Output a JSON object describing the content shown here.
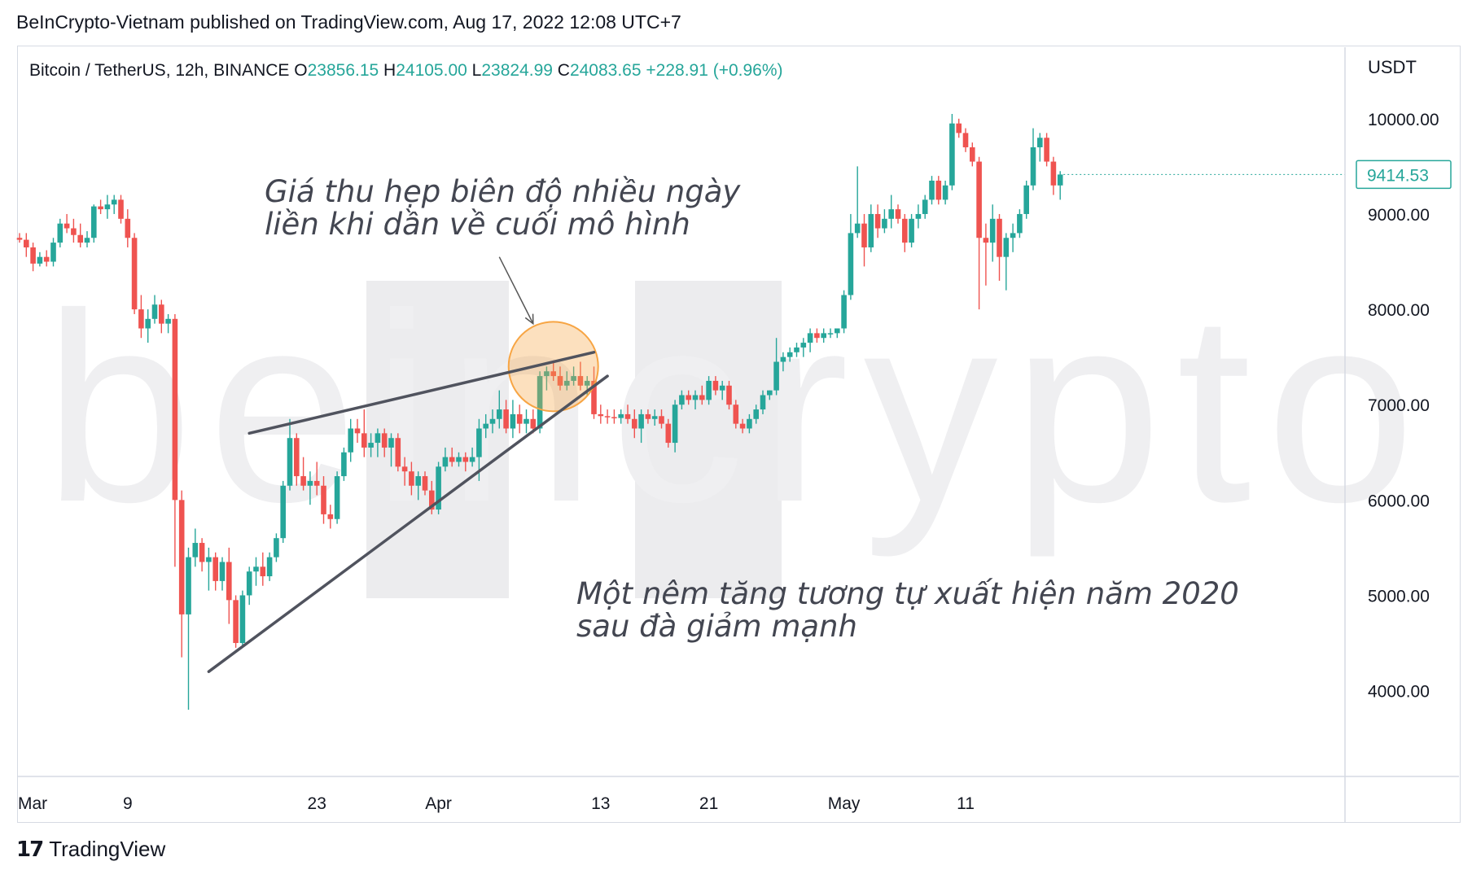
{
  "publisher": "BeInCrypto-Vietnam published on TradingView.com, Aug 17, 2022 12:08 UTC+7",
  "footer": {
    "brand": "TradingView"
  },
  "watermark": "beincrypto",
  "colors": {
    "up": "#26a69a",
    "down": "#ef5350",
    "trendline": "#50535e",
    "highlight": "#f7a544",
    "annotation": "#434651"
  },
  "chart_data": {
    "type": "candlestick",
    "symbol": "Bitcoin / TetherUS, 12h, BINANCE",
    "ohlc": {
      "O": "23856.15",
      "H": "24105.00",
      "L": "23824.99",
      "C": "24083.65",
      "change": "+228.91 (+0.96%)"
    },
    "ylabel": "USDT",
    "yticks": [
      "4000.00",
      "5000.00",
      "6000.00",
      "7000.00",
      "8000.00",
      "9000.00",
      "10000.00"
    ],
    "ylim": [
      3100,
      10750
    ],
    "last_price": "9414.53",
    "xticks": [
      "Mar",
      "9",
      "23",
      "Apr",
      "13",
      "21",
      "May",
      "11"
    ],
    "xtick_index": [
      0,
      16,
      44,
      62,
      86,
      102,
      122,
      140
    ],
    "annotations": [
      {
        "lines": [
          "Giá thu hẹp biên độ nhiều ngày",
          "liền khi dần về cuối mô hình"
        ]
      },
      {
        "lines": [
          "Một nêm tăng tương tự xuất hiện năm 2020",
          "sau đà giảm mạnh"
        ]
      }
    ],
    "trendlines": [
      {
        "role": "upper",
        "from": {
          "i": 34,
          "price": 6700
        },
        "to": {
          "i": 85,
          "price": 7550
        }
      },
      {
        "role": "lower",
        "from": {
          "i": 28,
          "price": 4200
        },
        "to": {
          "i": 87,
          "price": 7300
        }
      }
    ],
    "highlight_circle": {
      "i": 79,
      "price": 7400
    },
    "arrow": {
      "from": {
        "i": 71,
        "price": 8550
      },
      "to": {
        "i": 76,
        "price": 7850
      }
    },
    "candles": [
      [
        8750,
        8800,
        8700,
        8730
      ],
      [
        8730,
        8800,
        8550,
        8650
      ],
      [
        8650,
        8700,
        8400,
        8480
      ],
      [
        8480,
        8600,
        8450,
        8550
      ],
      [
        8550,
        8620,
        8450,
        8500
      ],
      [
        8500,
        8750,
        8450,
        8700
      ],
      [
        8700,
        8950,
        8650,
        8900
      ],
      [
        8900,
        9000,
        8800,
        8850
      ],
      [
        8850,
        8950,
        8700,
        8780
      ],
      [
        8780,
        8900,
        8650,
        8700
      ],
      [
        8700,
        8820,
        8650,
        8750
      ],
      [
        8750,
        9100,
        8700,
        9080
      ],
      [
        9080,
        9150,
        9000,
        9050
      ],
      [
        9050,
        9200,
        8950,
        9100
      ],
      [
        9100,
        9200,
        9000,
        9150
      ],
      [
        9150,
        9200,
        8900,
        8950
      ],
      [
        8950,
        9050,
        8650,
        8750
      ],
      [
        8750,
        8800,
        7950,
        8000
      ],
      [
        8000,
        8150,
        7700,
        7800
      ],
      [
        7800,
        8000,
        7650,
        7900
      ],
      [
        7900,
        8150,
        7850,
        8050
      ],
      [
        8050,
        8100,
        7750,
        7850
      ],
      [
        7850,
        7950,
        7750,
        7900
      ],
      [
        7900,
        7950,
        5300,
        6000
      ],
      [
        6000,
        6100,
        4350,
        4800
      ],
      [
        4800,
        5500,
        3800,
        5400
      ],
      [
        5400,
        5700,
        5300,
        5550
      ],
      [
        5550,
        5600,
        5250,
        5350
      ],
      [
        5350,
        5500,
        5050,
        5400
      ],
      [
        5400,
        5450,
        5050,
        5150
      ],
      [
        5150,
        5400,
        5050,
        5350
      ],
      [
        5350,
        5500,
        4700,
        4950
      ],
      [
        4950,
        5000,
        4450,
        4500
      ],
      [
        4500,
        5050,
        4450,
        5000
      ],
      [
        5000,
        5300,
        4900,
        5250
      ],
      [
        5250,
        5400,
        5100,
        5300
      ],
      [
        5300,
        5450,
        5100,
        5200
      ],
      [
        5200,
        5450,
        5150,
        5400
      ],
      [
        5400,
        5650,
        5350,
        5600
      ],
      [
        5600,
        6200,
        5550,
        6150
      ],
      [
        6150,
        6850,
        6100,
        6650
      ],
      [
        6650,
        6700,
        6150,
        6250
      ],
      [
        6250,
        6450,
        6100,
        6150
      ],
      [
        6150,
        6300,
        5950,
        6200
      ],
      [
        6200,
        6400,
        6050,
        6150
      ],
      [
        6150,
        6250,
        5750,
        5850
      ],
      [
        5850,
        5950,
        5700,
        5800
      ],
      [
        5800,
        6300,
        5750,
        6250
      ],
      [
        6250,
        6550,
        6200,
        6500
      ],
      [
        6500,
        6850,
        6400,
        6750
      ],
      [
        6750,
        6850,
        6600,
        6700
      ],
      [
        6700,
        6950,
        6450,
        6550
      ],
      [
        6550,
        6700,
        6450,
        6600
      ],
      [
        6600,
        6750,
        6450,
        6700
      ],
      [
        6700,
        6750,
        6450,
        6550
      ],
      [
        6550,
        6700,
        6350,
        6650
      ],
      [
        6650,
        6700,
        6300,
        6350
      ],
      [
        6350,
        6450,
        6150,
        6300
      ],
      [
        6300,
        6400,
        6050,
        6150
      ],
      [
        6150,
        6300,
        6000,
        6250
      ],
      [
        6250,
        6300,
        6050,
        6100
      ],
      [
        6100,
        6200,
        5850,
        5900
      ],
      [
        5900,
        6400,
        5850,
        6350
      ],
      [
        6350,
        6550,
        6300,
        6450
      ],
      [
        6450,
        6550,
        6350,
        6400
      ],
      [
        6400,
        6500,
        6350,
        6450
      ],
      [
        6450,
        6500,
        6300,
        6400
      ],
      [
        6400,
        6550,
        6350,
        6450
      ],
      [
        6450,
        6850,
        6200,
        6750
      ],
      [
        6750,
        6900,
        6650,
        6800
      ],
      [
        6800,
        6950,
        6700,
        6850
      ],
      [
        6850,
        7150,
        6750,
        6950
      ],
      [
        6950,
        7050,
        6700,
        6750
      ],
      [
        6750,
        7050,
        6650,
        6900
      ],
      [
        6900,
        7000,
        6700,
        6800
      ],
      [
        6800,
        6950,
        6700,
        6850
      ],
      [
        6850,
        6950,
        6700,
        6750
      ],
      [
        6750,
        7350,
        6700,
        7300
      ],
      [
        7300,
        7400,
        7150,
        7350
      ],
      [
        7350,
        7450,
        7250,
        7300
      ],
      [
        7300,
        7400,
        7150,
        7200
      ],
      [
        7200,
        7350,
        7150,
        7250
      ],
      [
        7250,
        7400,
        7200,
        7300
      ],
      [
        7300,
        7450,
        7150,
        7200
      ],
      [
        7200,
        7300,
        7100,
        7250
      ],
      [
        7250,
        7400,
        6850,
        6900
      ],
      [
        6900,
        7000,
        6800,
        6880
      ],
      [
        6880,
        6950,
        6800,
        6870
      ],
      [
        6870,
        6950,
        6800,
        6860
      ],
      [
        6860,
        6950,
        6800,
        6900
      ],
      [
        6900,
        7000,
        6800,
        6850
      ],
      [
        6850,
        6950,
        6650,
        6750
      ],
      [
        6750,
        6950,
        6600,
        6900
      ],
      [
        6900,
        6950,
        6800,
        6850
      ],
      [
        6850,
        6950,
        6780,
        6880
      ],
      [
        6880,
        6950,
        6750,
        6800
      ],
      [
        6800,
        6850,
        6550,
        6600
      ],
      [
        6600,
        7050,
        6500,
        7000
      ],
      [
        7000,
        7150,
        6950,
        7100
      ],
      [
        7100,
        7150,
        7000,
        7050
      ],
      [
        7050,
        7150,
        6950,
        7100
      ],
      [
        7100,
        7200,
        7000,
        7050
      ],
      [
        7050,
        7300,
        7000,
        7250
      ],
      [
        7250,
        7300,
        7100,
        7150
      ],
      [
        7150,
        7250,
        7050,
        7200
      ],
      [
        7200,
        7250,
        6950,
        7000
      ],
      [
        7000,
        7050,
        6750,
        6800
      ],
      [
        6800,
        6850,
        6700,
        6750
      ],
      [
        6750,
        6900,
        6700,
        6850
      ],
      [
        6850,
        7000,
        6800,
        6950
      ],
      [
        6950,
        7150,
        6900,
        7100
      ],
      [
        7100,
        7150,
        7050,
        7150
      ],
      [
        7150,
        7700,
        7100,
        7450
      ],
      [
        7450,
        7550,
        7350,
        7500
      ],
      [
        7500,
        7600,
        7450,
        7550
      ],
      [
        7550,
        7650,
        7500,
        7600
      ],
      [
        7600,
        7700,
        7500,
        7650
      ],
      [
        7650,
        7800,
        7550,
        7750
      ],
      [
        7750,
        7800,
        7650,
        7700
      ],
      [
        7700,
        7800,
        7650,
        7750
      ],
      [
        7750,
        7800,
        7700,
        7750
      ],
      [
        7750,
        7800,
        7700,
        7800
      ],
      [
        7800,
        8200,
        7750,
        8150
      ],
      [
        8150,
        9000,
        8100,
        8800
      ],
      [
        8800,
        9500,
        8750,
        8900
      ],
      [
        8900,
        9000,
        8450,
        8650
      ],
      [
        8650,
        9100,
        8600,
        9000
      ],
      [
        9000,
        9100,
        8750,
        8850
      ],
      [
        8850,
        9050,
        8800,
        8950
      ],
      [
        8950,
        9200,
        8850,
        9050
      ],
      [
        9050,
        9100,
        8900,
        8950
      ],
      [
        8950,
        9000,
        8600,
        8700
      ],
      [
        8700,
        9000,
        8650,
        8950
      ],
      [
        8950,
        9100,
        8850,
        9000
      ],
      [
        9000,
        9200,
        8950,
        9150
      ],
      [
        9150,
        9400,
        9100,
        9350
      ],
      [
        9350,
        9400,
        9100,
        9150
      ],
      [
        9150,
        9350,
        9100,
        9300
      ],
      [
        9300,
        10050,
        9250,
        9950
      ],
      [
        9950,
        10000,
        9800,
        9850
      ],
      [
        9850,
        9900,
        9650,
        9700
      ],
      [
        9700,
        9750,
        9500,
        9550
      ],
      [
        9550,
        9600,
        8000,
        8750
      ],
      [
        8750,
        8900,
        8250,
        8700
      ],
      [
        8700,
        9100,
        8500,
        8950
      ],
      [
        8950,
        9000,
        8300,
        8550
      ],
      [
        8550,
        8800,
        8200,
        8750
      ],
      [
        8750,
        8900,
        8600,
        8800
      ],
      [
        8800,
        9050,
        8750,
        9000
      ],
      [
        9000,
        9350,
        8950,
        9300
      ],
      [
        9300,
        9900,
        9250,
        9700
      ],
      [
        9700,
        9850,
        9550,
        9800
      ],
      [
        9800,
        9850,
        9500,
        9550
      ],
      [
        9550,
        9600,
        9200,
        9300
      ],
      [
        9300,
        9450,
        9150,
        9414.53
      ]
    ]
  }
}
